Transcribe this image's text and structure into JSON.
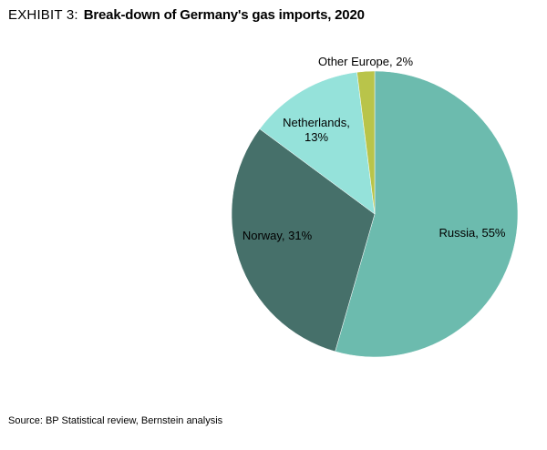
{
  "header": {
    "exhibit_label": "EXHIBIT 3:",
    "title": "Break-down of Germany's gas imports, 2020"
  },
  "chart_data": {
    "type": "pie",
    "title": "Break-down of Germany's gas imports, 2020",
    "slices": [
      {
        "name": "Russia",
        "value": 55,
        "color": "#6cbbae",
        "label_lines": [
          "Russia, 55%"
        ]
      },
      {
        "name": "Norway",
        "value": 31,
        "color": "#46706a",
        "label_lines": [
          "Norway, 31%"
        ]
      },
      {
        "name": "Netherlands",
        "value": 13,
        "color": "#95e2da",
        "label_lines": [
          "Netherlands,",
          "13%"
        ]
      },
      {
        "name": "Other Europe",
        "value": 2,
        "color": "#b9c44a",
        "label_lines": [
          "Other Europe, 2%"
        ]
      }
    ],
    "start_angle_deg": 0,
    "direction": "clockwise"
  },
  "footer": {
    "source": "Source: BP Statistical review, Bernstein analysis"
  }
}
